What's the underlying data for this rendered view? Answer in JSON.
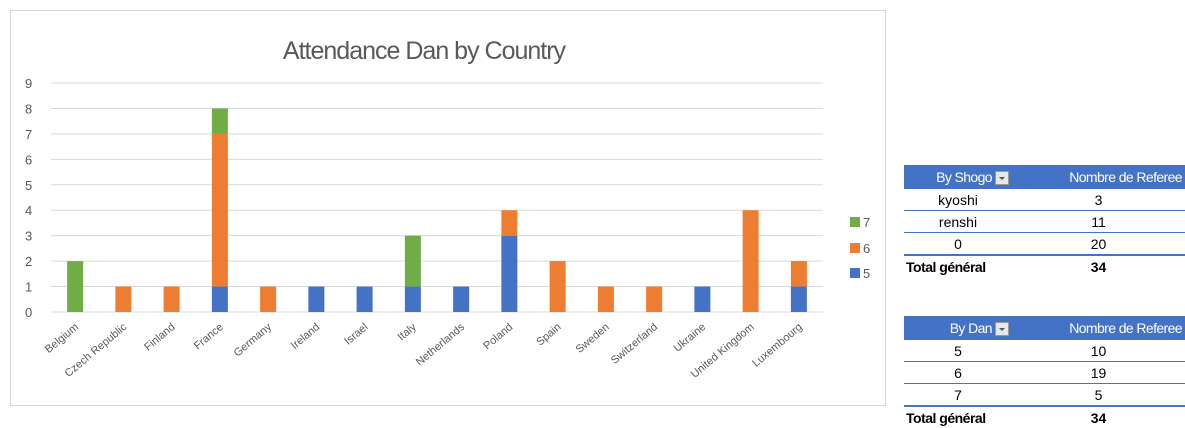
{
  "chart_data": {
    "type": "bar",
    "stacked": true,
    "title": "Attendance Dan by Country",
    "categories": [
      "Belgium",
      "Czech Republic",
      "Finland",
      "France",
      "Germany",
      "Ireland",
      "Israel",
      "Italy",
      "Netherlands",
      "Poland",
      "Spain",
      "Sweden",
      "Switzerland",
      "Ukraine",
      "United Kingdom",
      "Luxembourg"
    ],
    "series": [
      {
        "name": "5",
        "color": "#4472c4",
        "values": [
          0,
          0,
          0,
          1,
          0,
          1,
          1,
          1,
          1,
          3,
          0,
          0,
          0,
          1,
          0,
          1
        ]
      },
      {
        "name": "6",
        "color": "#ed7d31",
        "values": [
          0,
          1,
          1,
          6,
          1,
          0,
          0,
          0,
          0,
          1,
          2,
          1,
          1,
          0,
          4,
          1
        ]
      },
      {
        "name": "7",
        "color": "#70ad47",
        "values": [
          2,
          0,
          0,
          1,
          0,
          0,
          0,
          2,
          0,
          0,
          0,
          0,
          0,
          0,
          0,
          0
        ]
      }
    ],
    "ylim": [
      0,
      9
    ],
    "yticks": [
      0,
      1,
      2,
      3,
      4,
      5,
      6,
      7,
      8,
      9
    ],
    "grid": true,
    "legend_position": "right",
    "legend_order": [
      "7",
      "6",
      "5"
    ]
  },
  "tables": {
    "shogo": {
      "header_label": "By Shogo",
      "header_value": "Nombre de Referee",
      "rows": [
        {
          "label": "kyoshi",
          "value": "3"
        },
        {
          "label": "renshi",
          "value": "11"
        },
        {
          "label": "0",
          "value": "20"
        }
      ],
      "total_label": "Total général",
      "total_value": "34"
    },
    "dan": {
      "header_label": "By Dan",
      "header_value": "Nombre de Referee",
      "rows": [
        {
          "label": "5",
          "value": "10"
        },
        {
          "label": "6",
          "value": "19"
        },
        {
          "label": "7",
          "value": "5"
        }
      ],
      "total_label": "Total général",
      "total_value": "34"
    }
  },
  "colors": {
    "header": "#4472c4",
    "grid": "#d9d9d9",
    "axis_text": "#595959"
  }
}
